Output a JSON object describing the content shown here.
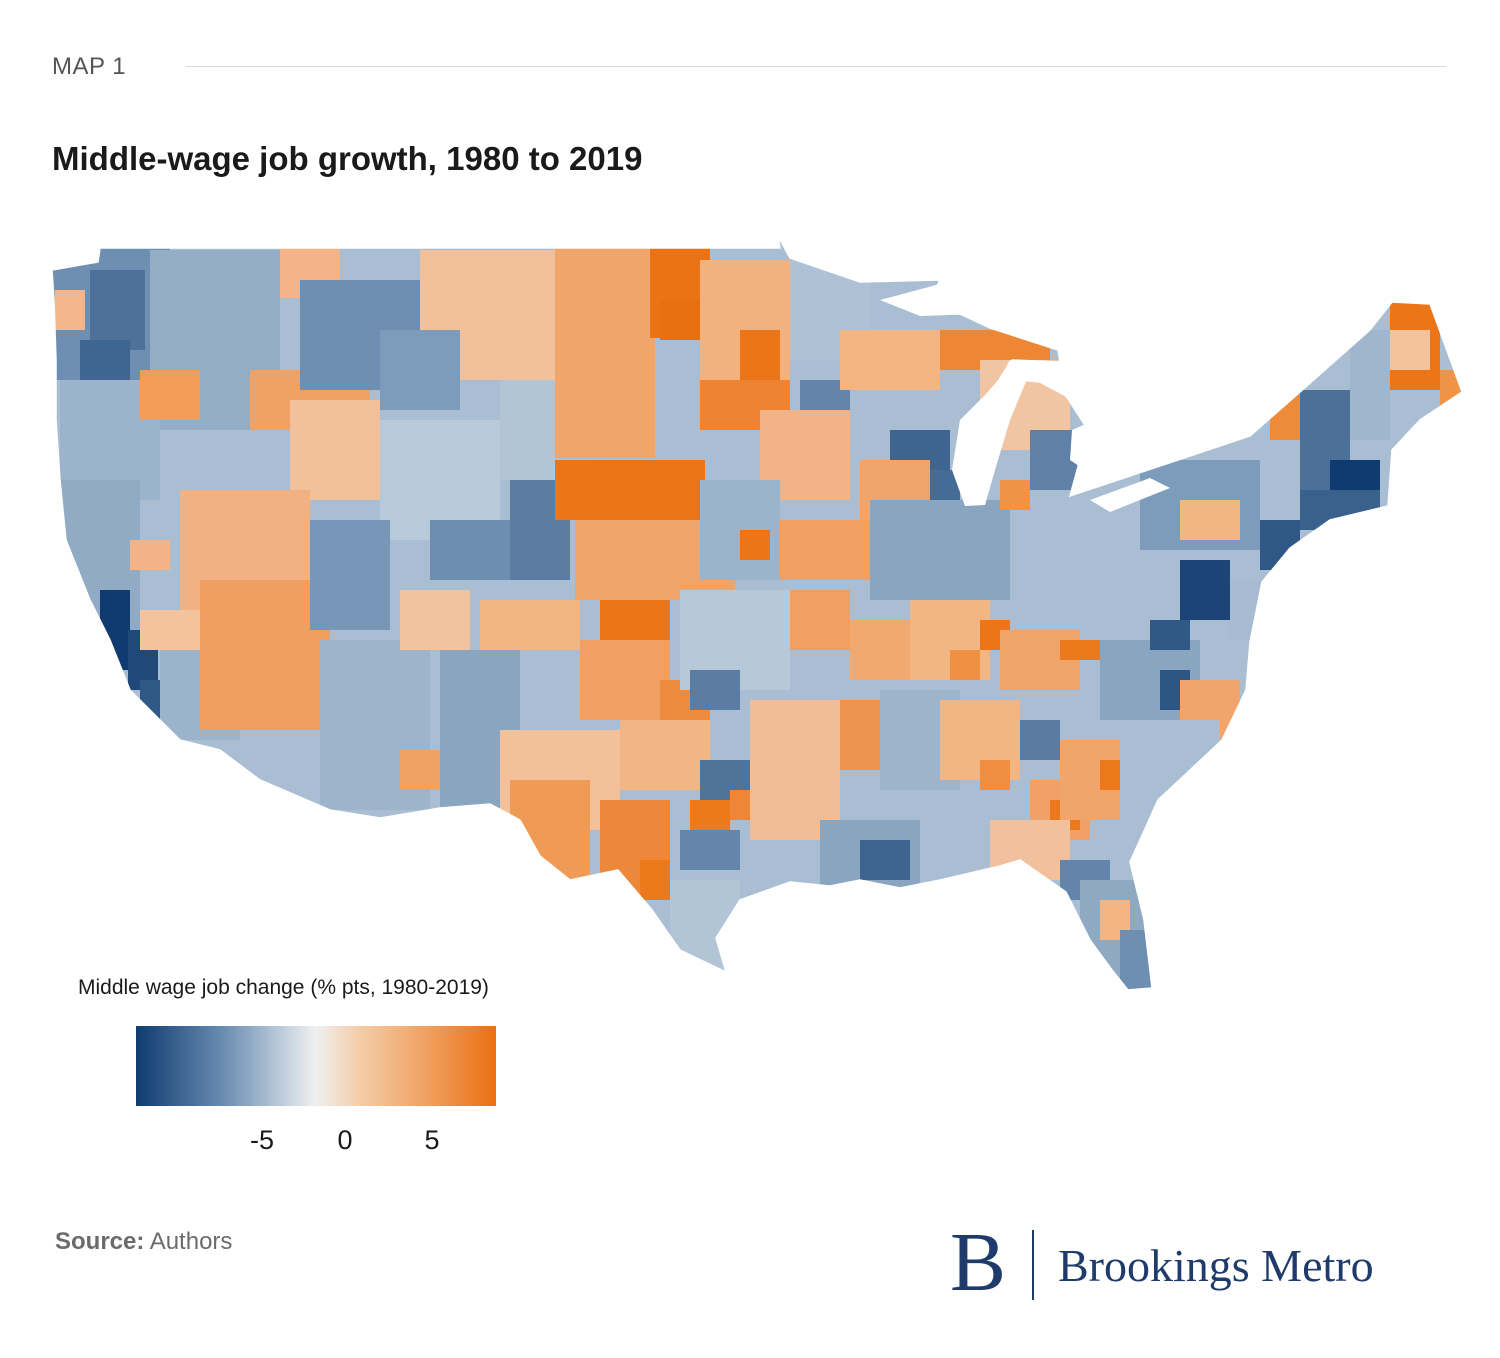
{
  "header": {
    "kicker": "MAP 1",
    "title": "Middle-wage job growth, 1980 to 2019"
  },
  "legend": {
    "title": "Middle wage job change (% pts, 1980-2019)",
    "ticks": [
      "-5",
      "0",
      "5"
    ],
    "colors": {
      "low": "#0f3b70",
      "mid": "#f0f0f0",
      "high": "#ec6f12"
    }
  },
  "footer": {
    "source_label": "Source:",
    "source_value": " Authors"
  },
  "brand": {
    "logo_letter": "B",
    "name": "Brookings Metro"
  },
  "chart_data": {
    "type": "choropleth",
    "title": "Middle-wage job growth, 1980 to 2019",
    "geography": "United States (contiguous) commuting zones",
    "variable": "Middle wage job change (% pts, 1980-2019)",
    "scale": {
      "ticks": [
        -5,
        0,
        5
      ],
      "colors": [
        "#0f3b70",
        "#f0f0f0",
        "#ec6f12"
      ]
    }
  }
}
